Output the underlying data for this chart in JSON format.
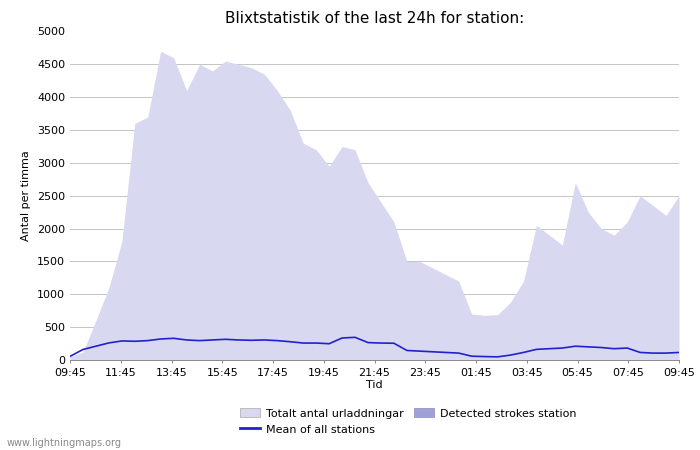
{
  "title": "Blixtstatistik of the last 24h for station:",
  "xlabel": "Tid",
  "ylabel": "Antal per timma",
  "watermark": "www.lightningmaps.org",
  "ylim": [
    0,
    5000
  ],
  "yticks": [
    0,
    500,
    1000,
    1500,
    2000,
    2500,
    3000,
    3500,
    4000,
    4500,
    5000
  ],
  "xtick_labels": [
    "09:45",
    "11:45",
    "13:45",
    "15:45",
    "17:45",
    "19:45",
    "21:45",
    "23:45",
    "01:45",
    "03:45",
    "05:45",
    "07:45",
    "09:45"
  ],
  "legend_labels": [
    "Totalt antal urladdningar",
    "Mean of all stations",
    "Detected strokes station"
  ],
  "color_fill_light": "#d8d8f0",
  "color_fill_medium": "#a0a0d8",
  "color_line": "#2222cc",
  "color_grid": "#bbbbbb",
  "background": "#ffffff",
  "title_fontsize": 11,
  "axis_label_fontsize": 8,
  "tick_fontsize": 8,
  "total_urladdningar": [
    50,
    120,
    600,
    1100,
    1800,
    3600,
    3700,
    4700,
    4600,
    4100,
    4500,
    4400,
    4550,
    4500,
    4450,
    4350,
    4100,
    3800,
    3300,
    3200,
    2950,
    3250,
    3200,
    2700,
    2400,
    2100,
    1500,
    1500,
    1400,
    1300,
    1200,
    700,
    680,
    690,
    880,
    1200,
    2050,
    1900,
    1750,
    2700,
    2250,
    2000,
    1900,
    2100,
    2500,
    2350,
    2200,
    2500
  ],
  "mean_line": [
    55,
    160,
    210,
    260,
    290,
    285,
    295,
    320,
    330,
    305,
    295,
    305,
    315,
    305,
    300,
    305,
    295,
    278,
    258,
    258,
    248,
    335,
    345,
    265,
    258,
    255,
    145,
    135,
    125,
    115,
    105,
    58,
    52,
    48,
    75,
    115,
    162,
    172,
    182,
    210,
    200,
    190,
    172,
    182,
    115,
    105,
    105,
    115
  ]
}
